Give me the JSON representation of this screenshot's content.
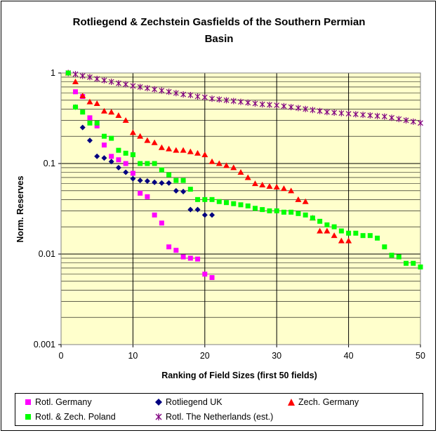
{
  "chart_data": {
    "type": "scatter",
    "title_lines": [
      "Rotliegend & Zechstein Gasfields of the Southern Permian",
      "Basin"
    ],
    "xlabel": "Ranking of Field Sizes (first 50 fields)",
    "ylabel": "Norm. Reserves",
    "xlim": [
      0,
      50
    ],
    "ylim": [
      0.001,
      1
    ],
    "yscale": "log",
    "x_ticks": [
      "0",
      "10",
      "20",
      "30",
      "40",
      "50"
    ],
    "y_ticks": [
      "0.001",
      "0.01",
      "0.1",
      "1"
    ],
    "grid": true,
    "legend_position": "bottom",
    "plot_background": "#FFFFCC",
    "series": [
      {
        "name": "Rotl. Germany",
        "marker": "square",
        "color": "#FF00FF",
        "x": [
          1,
          2,
          3,
          4,
          5,
          6,
          7,
          8,
          9,
          10,
          11,
          12,
          13,
          14,
          15,
          16,
          17,
          18,
          19,
          20,
          21
        ],
        "y": [
          1,
          0.62,
          0.55,
          0.32,
          0.26,
          0.16,
          0.12,
          0.11,
          0.1,
          0.078,
          0.047,
          0.043,
          0.027,
          0.022,
          0.012,
          0.011,
          0.0093,
          0.009,
          0.0088,
          0.006,
          0.0055
        ]
      },
      {
        "name": "Rotliegend UK",
        "marker": "diamond",
        "color": "#000080",
        "x": [
          1,
          2,
          3,
          4,
          5,
          6,
          7,
          8,
          9,
          10,
          11,
          12,
          13,
          14,
          15,
          16,
          17,
          18,
          19,
          20,
          21
        ],
        "y": [
          1,
          0.42,
          0.25,
          0.18,
          0.12,
          0.115,
          0.105,
          0.09,
          0.08,
          0.068,
          0.065,
          0.064,
          0.062,
          0.061,
          0.061,
          0.05,
          0.049,
          0.031,
          0.031,
          0.027,
          0.027
        ]
      },
      {
        "name": "Zech. Germany",
        "marker": "triangle",
        "color": "#FF0000",
        "x": [
          1,
          2,
          3,
          4,
          5,
          6,
          7,
          8,
          9,
          10,
          11,
          12,
          13,
          14,
          15,
          16,
          17,
          18,
          19,
          20,
          21,
          22,
          23,
          24,
          25,
          26,
          27,
          28,
          29,
          30,
          31,
          32,
          33,
          34,
          35,
          36,
          37,
          38,
          39,
          40
        ],
        "y": [
          1,
          0.8,
          0.56,
          0.48,
          0.46,
          0.38,
          0.37,
          0.34,
          0.3,
          0.22,
          0.2,
          0.18,
          0.17,
          0.15,
          0.145,
          0.14,
          0.14,
          0.135,
          0.13,
          0.125,
          0.105,
          0.1,
          0.095,
          0.09,
          0.08,
          0.07,
          0.06,
          0.058,
          0.056,
          0.055,
          0.053,
          0.05,
          0.04,
          0.038,
          0.025,
          0.018,
          0.018,
          0.016,
          0.014,
          0.014
        ]
      },
      {
        "name": "Rotl. & Zech. Poland",
        "marker": "square",
        "color": "#00FF00",
        "x": [
          1,
          2,
          3,
          4,
          5,
          6,
          7,
          8,
          9,
          10,
          11,
          12,
          13,
          14,
          15,
          16,
          17,
          18,
          19,
          20,
          21,
          22,
          23,
          24,
          25,
          26,
          27,
          28,
          29,
          30,
          31,
          32,
          33,
          34,
          35,
          36,
          37,
          38,
          39,
          40,
          41,
          42,
          43,
          44,
          45,
          46,
          47,
          48,
          49,
          50
        ],
        "y": [
          1,
          0.42,
          0.37,
          0.28,
          0.28,
          0.2,
          0.19,
          0.14,
          0.13,
          0.125,
          0.1,
          0.1,
          0.1,
          0.085,
          0.075,
          0.065,
          0.065,
          0.052,
          0.04,
          0.04,
          0.04,
          0.038,
          0.037,
          0.036,
          0.035,
          0.034,
          0.032,
          0.031,
          0.03,
          0.03,
          0.029,
          0.029,
          0.028,
          0.027,
          0.025,
          0.023,
          0.021,
          0.02,
          0.018,
          0.017,
          0.017,
          0.016,
          0.016,
          0.015,
          0.012,
          0.0097,
          0.0093,
          0.0079,
          0.0079,
          0.0072
        ]
      },
      {
        "name": "Rotl. The Netherlands (est.)",
        "marker": "star",
        "color": "#800080",
        "x": [
          1,
          2,
          3,
          4,
          5,
          6,
          7,
          8,
          9,
          10,
          11,
          12,
          13,
          14,
          15,
          16,
          17,
          18,
          19,
          20,
          21,
          22,
          23,
          24,
          25,
          26,
          27,
          28,
          29,
          30,
          31,
          32,
          33,
          34,
          35,
          36,
          37,
          38,
          39,
          40,
          41,
          42,
          43,
          44,
          45,
          46,
          47,
          48,
          49,
          50
        ],
        "y": [
          1,
          0.97,
          0.93,
          0.9,
          0.86,
          0.83,
          0.8,
          0.77,
          0.75,
          0.72,
          0.7,
          0.68,
          0.66,
          0.64,
          0.62,
          0.6,
          0.58,
          0.57,
          0.55,
          0.54,
          0.52,
          0.51,
          0.5,
          0.49,
          0.48,
          0.47,
          0.46,
          0.45,
          0.445,
          0.44,
          0.43,
          0.42,
          0.41,
          0.4,
          0.39,
          0.38,
          0.37,
          0.365,
          0.36,
          0.355,
          0.35,
          0.345,
          0.34,
          0.335,
          0.33,
          0.32,
          0.31,
          0.3,
          0.29,
          0.28
        ]
      }
    ]
  }
}
